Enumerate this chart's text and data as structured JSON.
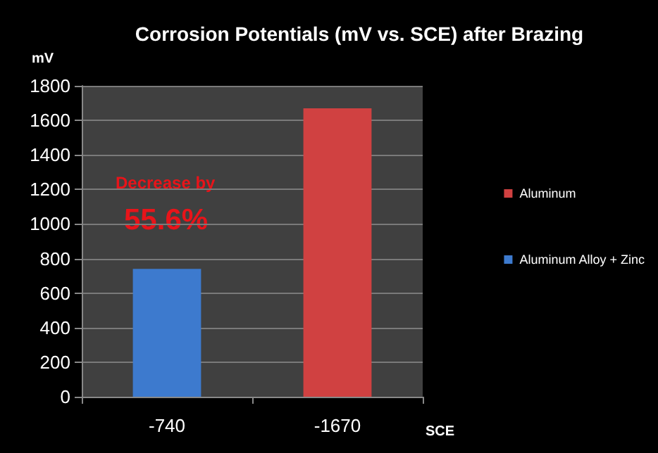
{
  "chart_data": {
    "type": "bar",
    "title": "Corrosion Potentials (mV vs. SCE) after Brazing",
    "xlabel": "SCE",
    "ylabel": "mV",
    "categories": [
      "-740",
      "-1670"
    ],
    "series": [
      {
        "name": "Aluminum",
        "color": "#d04141",
        "values": [
          null,
          1670
        ]
      },
      {
        "name": "Aluminum Alloy + Zinc",
        "color": "#3d7ace",
        "values": [
          740,
          null
        ]
      }
    ],
    "ylim": [
      0,
      1800
    ],
    "yticks": [
      0,
      200,
      400,
      600,
      800,
      1000,
      1200,
      1400,
      1600,
      1800
    ],
    "grid": "y",
    "legend": "right",
    "annotations": [
      "Decrease by",
      "55.6%"
    ]
  }
}
